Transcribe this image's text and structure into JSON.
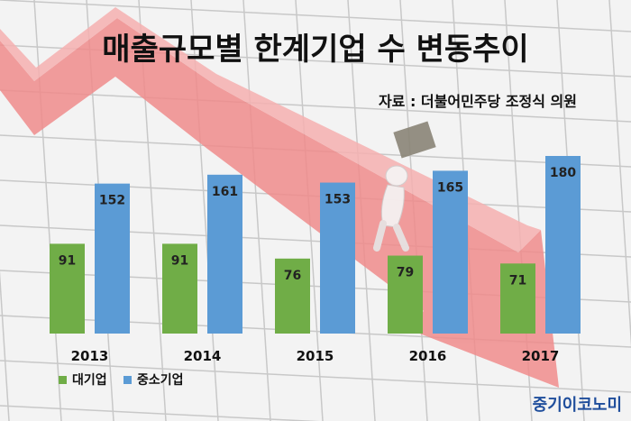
{
  "chart_data": {
    "type": "bar",
    "title": "매출규모별 한계기업 수 변동추이",
    "source": "자료 : 더불어민주당 조정식 의원",
    "categories": [
      "2013",
      "2014",
      "2015",
      "2016",
      "2017"
    ],
    "series": [
      {
        "name": "대기업",
        "color": "#70ad47",
        "values": [
          91,
          91,
          76,
          79,
          71
        ]
      },
      {
        "name": "중소기업",
        "color": "#5b9bd5",
        "values": [
          152,
          161,
          153,
          165,
          180
        ]
      }
    ],
    "ylim": [
      0,
      200
    ],
    "grid": false,
    "legend": "bottom-left"
  },
  "brand": {
    "name": "중기이코노미",
    "color": "#1f4e9c"
  },
  "colors": {
    "arrow": "#f08c8c",
    "background": "#f3f3f3",
    "grid_lines": "#c8c8c8"
  },
  "decorations": {
    "background_icon": "figure-carrying-box-icon"
  }
}
